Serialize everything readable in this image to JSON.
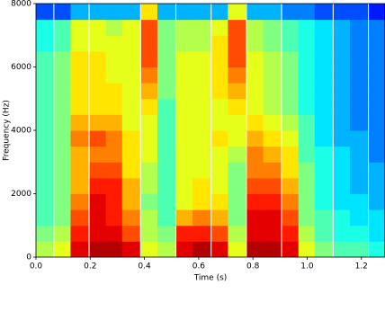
{
  "chart_data": {
    "type": "heatmap",
    "colormap": "jet",
    "zlim": [
      0,
      1
    ],
    "xlabel": "Time (s)",
    "ylabel": "Frequency (Hz)",
    "xlim": [
      0,
      1.287
    ],
    "ylim": [
      0,
      8000
    ],
    "xticks": [
      {
        "value": 0,
        "label": "0.0"
      },
      0.2,
      0.4,
      0.6,
      0.8,
      {
        "value": 1,
        "label": "1.0"
      },
      1.2
    ],
    "yticks": [
      0,
      2000,
      4000,
      6000,
      8000
    ],
    "x": [
      0.03,
      0.1,
      0.16,
      0.23,
      0.29,
      0.35,
      0.42,
      0.48,
      0.55,
      0.61,
      0.68,
      0.74,
      0.81,
      0.87,
      0.94,
      1.0,
      1.06,
      1.13,
      1.19,
      1.26
    ],
    "y": [
      250,
      750,
      1250,
      1750,
      2250,
      2750,
      3250,
      3750,
      4250,
      4750,
      5250,
      5750,
      6250,
      6750,
      7250,
      7750
    ],
    "z": [
      [
        0.55,
        0.6,
        0.9,
        0.95,
        0.95,
        0.9,
        0.6,
        0.55,
        0.9,
        0.95,
        0.9,
        0.6,
        0.95,
        0.95,
        0.9,
        0.6,
        0.5,
        0.45,
        0.45,
        0.4
      ],
      [
        0.5,
        0.55,
        0.85,
        0.9,
        0.9,
        0.8,
        0.55,
        0.5,
        0.85,
        0.85,
        0.8,
        0.55,
        0.9,
        0.9,
        0.85,
        0.55,
        0.45,
        0.4,
        0.4,
        0.35
      ],
      [
        0.45,
        0.5,
        0.8,
        0.9,
        0.85,
        0.75,
        0.55,
        0.45,
        0.7,
        0.75,
        0.7,
        0.5,
        0.9,
        0.9,
        0.8,
        0.5,
        0.45,
        0.4,
        0.35,
        0.35
      ],
      [
        0.45,
        0.5,
        0.75,
        0.9,
        0.85,
        0.7,
        0.5,
        0.45,
        0.6,
        0.65,
        0.65,
        0.5,
        0.85,
        0.85,
        0.75,
        0.5,
        0.4,
        0.35,
        0.35,
        0.3
      ],
      [
        0.45,
        0.5,
        0.7,
        0.85,
        0.85,
        0.7,
        0.55,
        0.45,
        0.6,
        0.65,
        0.6,
        0.5,
        0.8,
        0.8,
        0.7,
        0.5,
        0.4,
        0.35,
        0.3,
        0.3
      ],
      [
        0.45,
        0.5,
        0.7,
        0.8,
        0.8,
        0.65,
        0.55,
        0.45,
        0.6,
        0.6,
        0.6,
        0.5,
        0.75,
        0.75,
        0.65,
        0.5,
        0.4,
        0.35,
        0.3,
        0.3
      ],
      [
        0.45,
        0.5,
        0.7,
        0.75,
        0.75,
        0.65,
        0.6,
        0.45,
        0.6,
        0.6,
        0.6,
        0.55,
        0.75,
        0.7,
        0.65,
        0.45,
        0.4,
        0.35,
        0.3,
        0.25
      ],
      [
        0.45,
        0.5,
        0.75,
        0.8,
        0.75,
        0.65,
        0.6,
        0.45,
        0.6,
        0.6,
        0.65,
        0.6,
        0.7,
        0.65,
        0.6,
        0.45,
        0.35,
        0.3,
        0.3,
        0.25
      ],
      [
        0.45,
        0.5,
        0.7,
        0.7,
        0.7,
        0.6,
        0.6,
        0.45,
        0.6,
        0.6,
        0.6,
        0.6,
        0.65,
        0.6,
        0.55,
        0.45,
        0.35,
        0.3,
        0.25,
        0.25
      ],
      [
        0.45,
        0.5,
        0.65,
        0.65,
        0.65,
        0.6,
        0.65,
        0.45,
        0.6,
        0.6,
        0.6,
        0.65,
        0.6,
        0.55,
        0.5,
        0.4,
        0.35,
        0.3,
        0.25,
        0.25
      ],
      [
        0.45,
        0.5,
        0.65,
        0.65,
        0.65,
        0.6,
        0.7,
        0.5,
        0.6,
        0.6,
        0.65,
        0.7,
        0.6,
        0.55,
        0.5,
        0.4,
        0.35,
        0.3,
        0.25,
        0.25
      ],
      [
        0.45,
        0.5,
        0.65,
        0.65,
        0.6,
        0.6,
        0.75,
        0.5,
        0.6,
        0.6,
        0.65,
        0.75,
        0.6,
        0.55,
        0.5,
        0.4,
        0.35,
        0.3,
        0.25,
        0.25
      ],
      [
        0.45,
        0.5,
        0.65,
        0.65,
        0.6,
        0.6,
        0.8,
        0.5,
        0.6,
        0.6,
        0.65,
        0.8,
        0.6,
        0.55,
        0.5,
        0.4,
        0.35,
        0.3,
        0.25,
        0.25
      ],
      [
        0.4,
        0.45,
        0.6,
        0.6,
        0.6,
        0.6,
        0.8,
        0.5,
        0.55,
        0.55,
        0.65,
        0.8,
        0.55,
        0.5,
        0.45,
        0.4,
        0.35,
        0.3,
        0.25,
        0.25
      ],
      [
        0.4,
        0.45,
        0.6,
        0.6,
        0.55,
        0.6,
        0.8,
        0.5,
        0.55,
        0.55,
        0.6,
        0.8,
        0.55,
        0.5,
        0.45,
        0.4,
        0.35,
        0.3,
        0.25,
        0.25
      ],
      [
        0.2,
        0.2,
        0.3,
        0.3,
        0.3,
        0.3,
        0.65,
        0.3,
        0.3,
        0.3,
        0.3,
        0.6,
        0.3,
        0.3,
        0.25,
        0.25,
        0.2,
        0.2,
        0.2,
        0.15
      ]
    ]
  }
}
